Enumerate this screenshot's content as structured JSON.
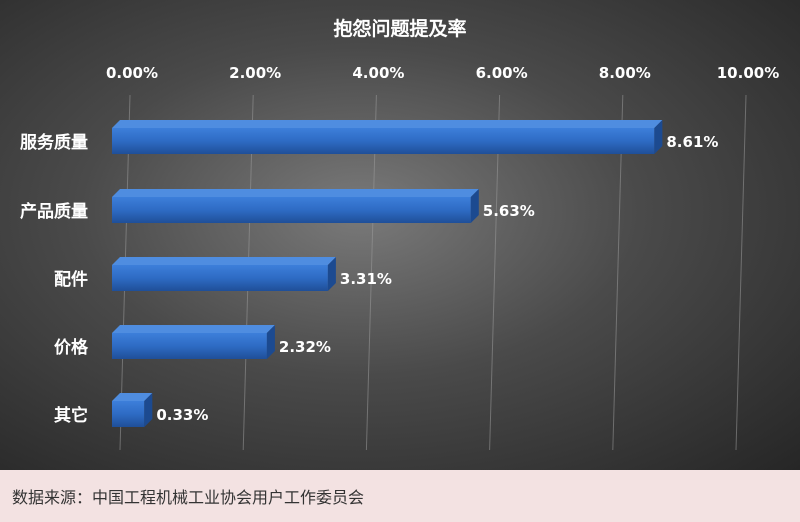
{
  "chart_data": {
    "type": "bar",
    "orientation": "horizontal",
    "title": "抱怨问题提及率",
    "categories": [
      "服务质量",
      "产品质量",
      "配件",
      "价格",
      "其它"
    ],
    "values": [
      8.61,
      5.63,
      3.31,
      2.32,
      0.33
    ],
    "value_labels": [
      "8.61%",
      "5.63%",
      "3.31%",
      "2.32%",
      "0.33%"
    ],
    "xlim": [
      0,
      10
    ],
    "x_ticks": [
      0,
      2,
      4,
      6,
      8,
      10
    ],
    "x_tick_labels": [
      "0.00%",
      "2.00%",
      "4.00%",
      "6.00%",
      "8.00%",
      "10.00%"
    ],
    "x_axis_position": "top",
    "grid": true,
    "legend": "none",
    "bar_color": "#2e6bc4",
    "background_color": "#4a4a4a"
  },
  "source": "数据来源：中国工程机械工业协会用户工作委员会"
}
